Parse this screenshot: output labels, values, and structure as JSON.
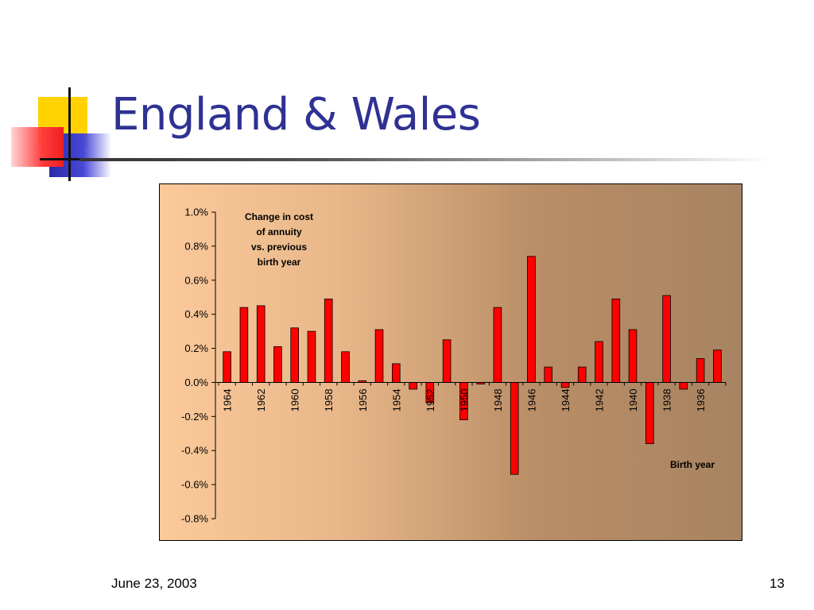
{
  "slide": {
    "title": "England & Wales",
    "date": "June 23, 2003",
    "page_number": "13"
  },
  "chart_data": {
    "type": "bar",
    "annotation": [
      "Change in cost",
      "of annuity",
      "vs. previous",
      "birth year"
    ],
    "xlabel": "Birth year",
    "categories": [
      "1964",
      "1963",
      "1962",
      "1961",
      "1960",
      "1959",
      "1958",
      "1957",
      "1956",
      "1955",
      "1954",
      "1953",
      "1952",
      "1951",
      "1950",
      "1949",
      "1948",
      "1947",
      "1946",
      "1945",
      "1944",
      "1943",
      "1942",
      "1941",
      "1940",
      "1939",
      "1938",
      "1937",
      "1936",
      "1935"
    ],
    "x_tick_labels": [
      "1964",
      "1962",
      "1960",
      "1958",
      "1956",
      "1954",
      "1952",
      "1950",
      "1948",
      "1946",
      "1944",
      "1942",
      "1940",
      "1938",
      "1936"
    ],
    "values": [
      0.0018,
      0.0044,
      0.0045,
      0.0021,
      0.0032,
      0.003,
      0.0049,
      0.0018,
      0.0001,
      0.0031,
      0.0011,
      -0.0004,
      -0.0012,
      0.0025,
      -0.0022,
      -0.0001,
      0.0044,
      -0.0054,
      0.0074,
      0.0009,
      -0.0003,
      0.0009,
      0.0024,
      0.0049,
      0.0031,
      -0.0036,
      0.0051,
      -0.0004,
      0.0014,
      0.0019
    ],
    "y_tick_labels": [
      "1.0%",
      "0.8%",
      "0.6%",
      "0.4%",
      "0.2%",
      "0.0%",
      "-0.2%",
      "-0.4%",
      "-0.6%",
      "-0.8%"
    ],
    "ylim": [
      -0.008,
      0.01
    ],
    "bar_color": "#ff0000",
    "grid": false
  }
}
